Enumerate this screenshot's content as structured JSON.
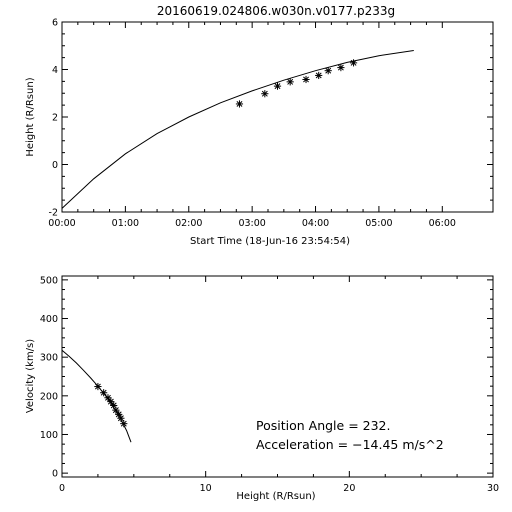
{
  "title": "20160619.024806.w030n.v0177.p233g",
  "chart_data": [
    {
      "type": "line",
      "xlabel": "Start Time (18-Jun-16 23:54:54)",
      "ylabel": "Height (R/Rsun)",
      "xlim": [
        0,
        6.8
      ],
      "ylim": [
        -2,
        6
      ],
      "x_ticks": [
        {
          "value": 0,
          "label": "00:00"
        },
        {
          "value": 1,
          "label": "01:00"
        },
        {
          "value": 2,
          "label": "02:00"
        },
        {
          "value": 3,
          "label": "03:00"
        },
        {
          "value": 4,
          "label": "04:00"
        },
        {
          "value": 5,
          "label": "05:00"
        },
        {
          "value": 6,
          "label": "06:00"
        }
      ],
      "y_ticks": [
        -2,
        0,
        2,
        4,
        6
      ],
      "series": [
        {
          "style": "line",
          "x": [
            0,
            0.5,
            1,
            1.5,
            2,
            2.5,
            3,
            3.5,
            4,
            4.5,
            5,
            5.55
          ],
          "y": [
            -1.85,
            -0.6,
            0.45,
            1.3,
            2.0,
            2.6,
            3.1,
            3.55,
            3.95,
            4.3,
            4.58,
            4.8
          ]
        },
        {
          "style": "markers",
          "marker": "asterisk",
          "x": [
            2.8,
            3.2,
            3.4,
            3.6,
            3.85,
            4.05,
            4.2,
            4.4,
            4.6
          ],
          "y": [
            2.55,
            2.98,
            3.3,
            3.48,
            3.58,
            3.75,
            3.95,
            4.08,
            4.28
          ]
        }
      ]
    },
    {
      "type": "line",
      "xlabel": "Height (R/Rsun)",
      "ylabel": "Velocity (km/s)",
      "xlim": [
        0,
        30
      ],
      "ylim": [
        -10,
        510
      ],
      "x_ticks": [
        0,
        10,
        20,
        30
      ],
      "y_ticks": [
        0,
        100,
        200,
        300,
        400,
        500
      ],
      "series": [
        {
          "style": "line",
          "x": [
            0,
            0.5,
            1,
            1.5,
            2,
            2.5,
            3,
            3.5,
            4,
            4.5,
            4.8
          ],
          "y": [
            318,
            302,
            285,
            266,
            246,
            225,
            202,
            176,
            146,
            110,
            80
          ]
        },
        {
          "style": "markers",
          "marker": "asterisk",
          "x": [
            2.5,
            2.9,
            3.2,
            3.4,
            3.6,
            3.75,
            3.95,
            4.1,
            4.3
          ],
          "y": [
            224,
            208,
            195,
            185,
            175,
            163,
            152,
            142,
            128
          ]
        }
      ],
      "annotations": [
        {
          "id": "position_angle",
          "text": "Position Angle =  232."
        },
        {
          "id": "acceleration",
          "text": "Acceleration = −14.45 m/s^2"
        }
      ]
    }
  ]
}
